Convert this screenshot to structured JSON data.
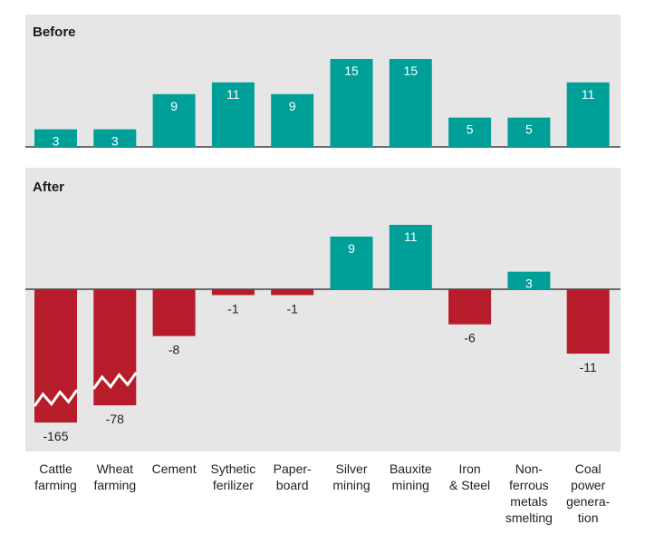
{
  "colors": {
    "positive": "#00a099",
    "negative": "#b71c2a",
    "panel": "#e6e6e6"
  },
  "chart_data": {
    "type": "bar",
    "categories": [
      [
        "Cattle",
        "farming"
      ],
      [
        "Wheat",
        "farming"
      ],
      [
        "Cement"
      ],
      [
        "Sythetic",
        "ferilizer"
      ],
      [
        "Paper-",
        "board"
      ],
      [
        "Silver",
        "mining"
      ],
      [
        "Bauxite",
        "mining"
      ],
      [
        "Iron",
        "& Steel"
      ],
      [
        "Non-",
        "ferrous",
        "metals",
        "smelting"
      ],
      [
        "Coal",
        "power",
        "genera-",
        "tion"
      ]
    ],
    "panels": [
      {
        "title": "Before",
        "values": [
          3,
          3,
          9,
          11,
          9,
          15,
          15,
          5,
          5,
          11
        ],
        "labels": [
          "3",
          "3",
          "9",
          "11",
          "9",
          "15",
          "15",
          "5",
          "5",
          "11"
        ]
      },
      {
        "title": "After",
        "values": [
          -165,
          -78,
          -8,
          -1,
          -1,
          9,
          11,
          -6,
          3,
          -11
        ],
        "labels": [
          "-165",
          "-78",
          "-8",
          "-1",
          "-1",
          "9",
          "11",
          "-6",
          "3",
          "-11"
        ],
        "axis_break": [
          "Cattle farming",
          "Wheat farming"
        ]
      }
    ]
  }
}
